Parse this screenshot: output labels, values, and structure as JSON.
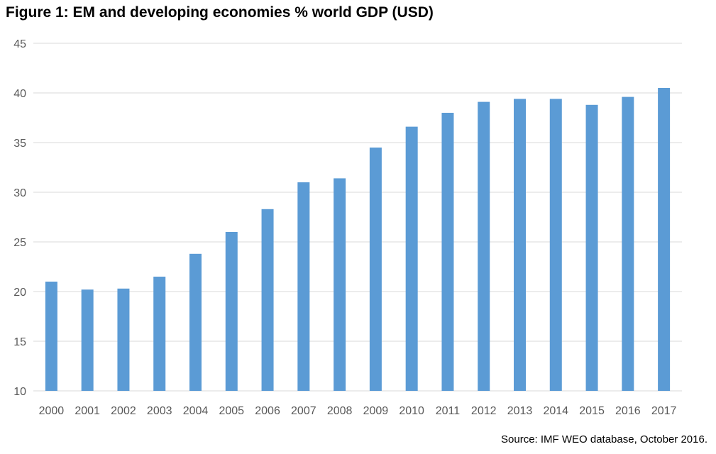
{
  "chart_data": {
    "type": "bar",
    "title": "Figure 1: EM and developing economies % world GDP (USD)",
    "xlabel": "",
    "ylabel": "",
    "categories": [
      "2000",
      "2001",
      "2002",
      "2003",
      "2004",
      "2005",
      "2006",
      "2007",
      "2008",
      "2009",
      "2010",
      "2011",
      "2012",
      "2013",
      "2014",
      "2015",
      "2016",
      "2017"
    ],
    "values": [
      21.0,
      20.2,
      20.3,
      21.5,
      23.8,
      26.0,
      28.3,
      31.0,
      31.4,
      34.5,
      36.6,
      38.0,
      39.1,
      39.4,
      39.4,
      38.8,
      39.6,
      40.5
    ],
    "ylim": [
      10,
      45
    ],
    "yticks": [
      "10",
      "15",
      "20",
      "25",
      "30",
      "35",
      "40",
      "45"
    ],
    "grid": true,
    "bar_color": "#5b9bd5",
    "grid_color": "#d9d9d9"
  },
  "source": "Source: IMF WEO database, October 2016."
}
